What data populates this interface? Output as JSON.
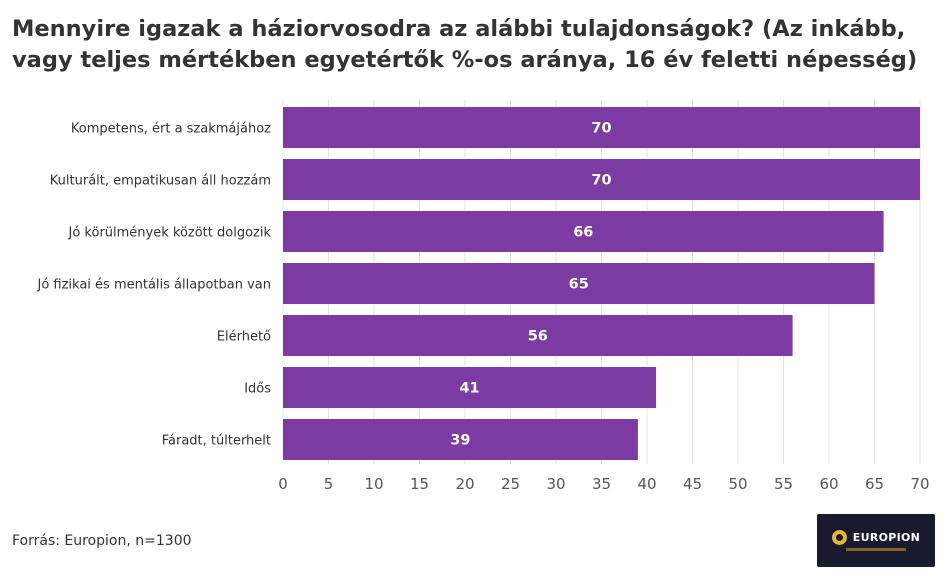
{
  "chart_data": {
    "type": "bar",
    "orientation": "horizontal",
    "title": "Mennyire igazak a háziorvosodra az alábbi tulajdonságok? (Az inkább, vagy teljes mértékben egyetértők %-os aránya, 16 év feletti népesség)",
    "categories": [
      "Kompetens, ért a szakmájához",
      "Kulturált, empatikusan áll hozzám",
      "Jó körülmények között dolgozik",
      "Jó fizikai és mentális állapotban van",
      "Elérhető",
      "Idős",
      "Fáradt, túlterhelt"
    ],
    "values": [
      70,
      70,
      66,
      65,
      56,
      41,
      39
    ],
    "xlim": [
      0,
      70
    ],
    "xticks": [
      0,
      5,
      10,
      15,
      20,
      25,
      30,
      35,
      40,
      45,
      50,
      55,
      60,
      65,
      70
    ],
    "grid": true,
    "bar_color": "#7b3ba3",
    "data_labels": true
  },
  "footer": {
    "source": "Forrás: Europion, n=1300"
  },
  "logo": {
    "name": "EUROPION",
    "bg_color": "#181b2e",
    "accent_color": "#e8b634"
  }
}
